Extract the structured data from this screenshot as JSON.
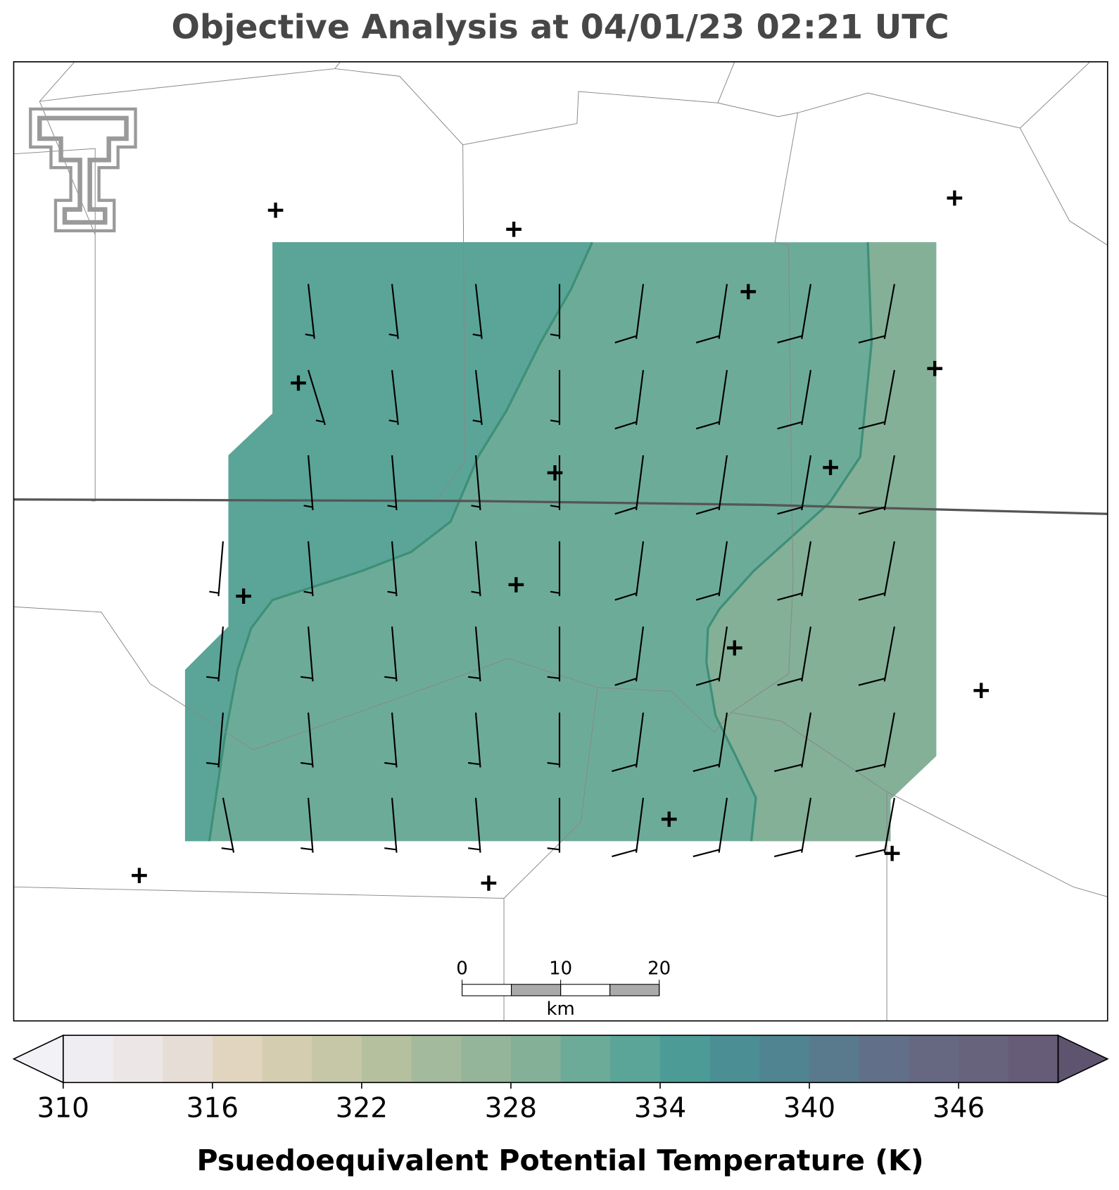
{
  "title": "Objective Analysis at 04/01/23 02:21 UTC",
  "colorbar": {
    "label": "Psuedoequivalent Potential Temperature (K)",
    "boundaries": [
      310,
      312,
      314,
      316,
      318,
      320,
      322,
      324,
      326,
      328,
      330,
      332,
      334,
      336,
      338,
      340,
      342,
      344,
      346,
      348,
      350
    ],
    "colors": [
      "#efedf2",
      "#ece7e6",
      "#e6ded6",
      "#e2d5c0",
      "#d4cdb0",
      "#c6c7a7",
      "#b5c09f",
      "#a4ba9c",
      "#95b59a",
      "#84b098",
      "#6dab99",
      "#5aa597",
      "#4d9b96",
      "#4b8f94",
      "#508491",
      "#597a8d",
      "#617088",
      "#666882",
      "#68637c",
      "#665c77"
    ],
    "extend_colors": [
      "#f2f1f5",
      "#5e5470"
    ],
    "ticks": [
      310,
      316,
      322,
      328,
      334,
      340,
      346
    ]
  },
  "analysis": {
    "fill_levels": [
      330,
      332,
      328
    ]
  },
  "scale_bar": {
    "ticks": [
      0,
      10,
      20
    ],
    "unit": "km"
  }
}
